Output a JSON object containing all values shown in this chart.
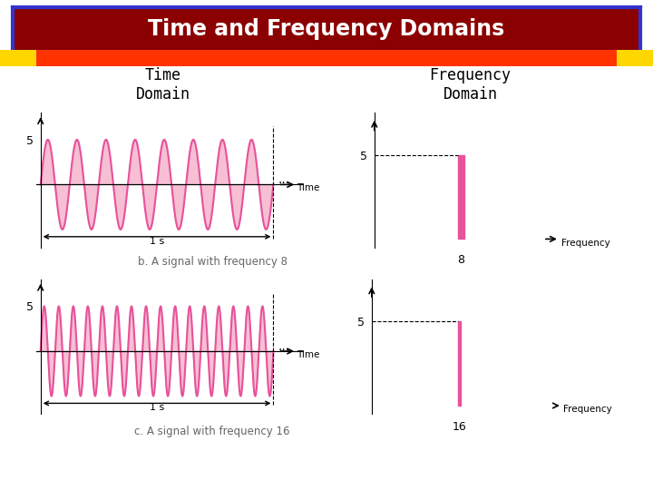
{
  "title": "Time and Frequency Domains",
  "title_bg": "#8B0000",
  "title_border": "#3333CC",
  "stripe_main": "#FF3300",
  "stripe_yellow": "#FFD700",
  "bar_color": "#E8529A",
  "wave_color": "#E8529A",
  "wave_fill": "#F5B8D0",
  "freq8": 8,
  "freq16": 16,
  "amplitude": 5,
  "caption_b": "b. A signal with frequency 8",
  "caption_c": "c. A signal with frequency 16",
  "time_domain_label": "Time\nDomain",
  "freq_domain_label": "Frequency\nDomain"
}
